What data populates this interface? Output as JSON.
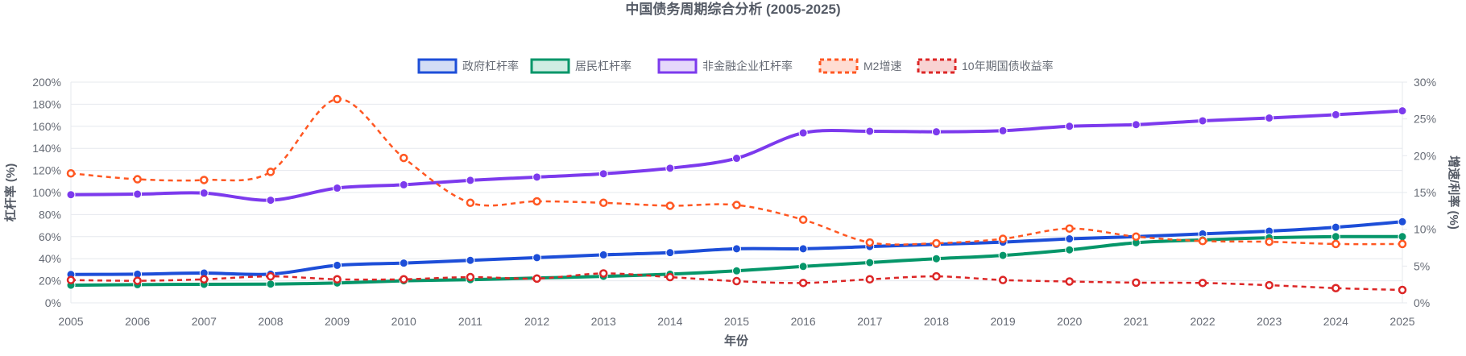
{
  "chart_data": {
    "type": "line",
    "title": "中国债务周期综合分析 (2005-2025)",
    "xlabel": "年份",
    "ylabel": "杠杆率 (%)",
    "y2label": "增速/利率 (%)",
    "ylim": [
      0,
      200
    ],
    "y2lim": [
      0,
      30
    ],
    "yticks": [
      "0%",
      "20%",
      "40%",
      "60%",
      "80%",
      "100%",
      "120%",
      "140%",
      "160%",
      "180%",
      "200%"
    ],
    "y2ticks": [
      "0%",
      "5%",
      "10%",
      "15%",
      "20%",
      "25%",
      "30%"
    ],
    "grid": true,
    "legend_position": "top",
    "categories": [
      "2005",
      "2006",
      "2007",
      "2008",
      "2009",
      "2010",
      "2011",
      "2012",
      "2013",
      "2014",
      "2015",
      "2016",
      "2017",
      "2018",
      "2019",
      "2020",
      "2021",
      "2022",
      "2023",
      "2024",
      "2025"
    ],
    "series": [
      {
        "name": "政府杠杆率",
        "axis": "left",
        "dashed": false,
        "color": "#1d4ed8",
        "fill": "#d3ddf5",
        "values": [
          25.7,
          26,
          27,
          26,
          34,
          36,
          38.5,
          41,
          43.5,
          45.5,
          49,
          49,
          51,
          53,
          55,
          58,
          60,
          62.5,
          65,
          68.5,
          73.5
        ]
      },
      {
        "name": "居民杠杆率",
        "axis": "left",
        "dashed": false,
        "color": "#059669",
        "fill": "#d0ede3",
        "values": [
          16,
          16.5,
          16.8,
          17,
          18,
          20,
          21,
          22.5,
          24,
          26,
          29,
          33,
          36.5,
          40,
          43,
          48,
          54.5,
          57,
          59,
          60,
          60
        ]
      },
      {
        "name": "非金融企业杠杆率",
        "axis": "left",
        "dashed": false,
        "color": "#7c3aed",
        "fill": "#e6d8fb",
        "values": [
          98,
          98.5,
          99.5,
          93,
          104,
          107,
          111,
          114,
          117,
          122,
          131,
          154,
          155.5,
          155,
          156,
          160,
          161.5,
          165,
          167.5,
          170.5,
          174
        ]
      },
      {
        "name": "M2增速",
        "axis": "right",
        "dashed": true,
        "color": "#ff5722",
        "fill": "#ffddd3",
        "values": [
          17.6,
          16.8,
          16.7,
          17.8,
          27.7,
          19.7,
          13.6,
          13.8,
          13.6,
          13.2,
          13.3,
          11.3,
          8.2,
          8.1,
          8.7,
          10.1,
          9.0,
          8.4,
          8.3,
          8.0,
          8.0
        ]
      },
      {
        "name": "10年期国债收益率",
        "axis": "right",
        "dashed": true,
        "color": "#dc2626",
        "fill": "#f8d3d3",
        "values": [
          3.1,
          3.0,
          3.2,
          3.6,
          3.2,
          3.2,
          3.5,
          3.3,
          4.0,
          3.5,
          2.95,
          2.7,
          3.2,
          3.6,
          3.1,
          2.9,
          2.75,
          2.7,
          2.4,
          2.0,
          1.75
        ]
      }
    ]
  }
}
